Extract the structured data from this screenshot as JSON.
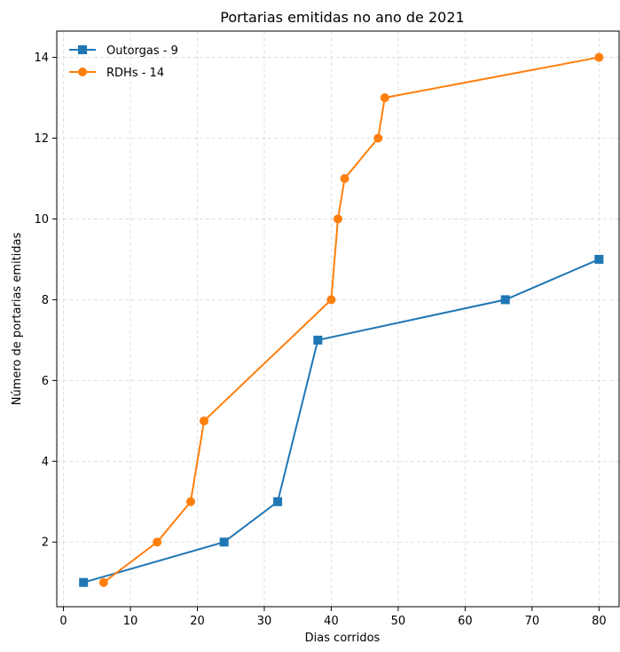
{
  "chart_data": {
    "type": "line",
    "title": "Portarias emitidas no ano de 2021",
    "xlabel": "Dias corridos",
    "ylabel": "Número de portarias emitidas",
    "xlim": [
      -1,
      83
    ],
    "ylim": [
      0.4,
      14.65
    ],
    "xticks": [
      0,
      10,
      20,
      30,
      40,
      50,
      60,
      70,
      80
    ],
    "yticks": [
      2,
      4,
      6,
      8,
      10,
      12,
      14
    ],
    "grid": true,
    "legend_position": "top-left",
    "series": [
      {
        "name": "Outorgas - 9",
        "color": "#1f77b4",
        "marker": "square",
        "x": [
          3,
          24,
          32,
          38,
          66,
          80
        ],
        "y": [
          1,
          2,
          3,
          7,
          8,
          9
        ]
      },
      {
        "name": "RDHs - 14",
        "color": "#ff7f0e",
        "marker": "circle",
        "x": [
          6,
          14,
          19,
          21,
          40,
          41,
          42,
          47,
          48,
          80
        ],
        "y": [
          1,
          2,
          3,
          5,
          8,
          10,
          11,
          12,
          13,
          14
        ]
      }
    ]
  }
}
